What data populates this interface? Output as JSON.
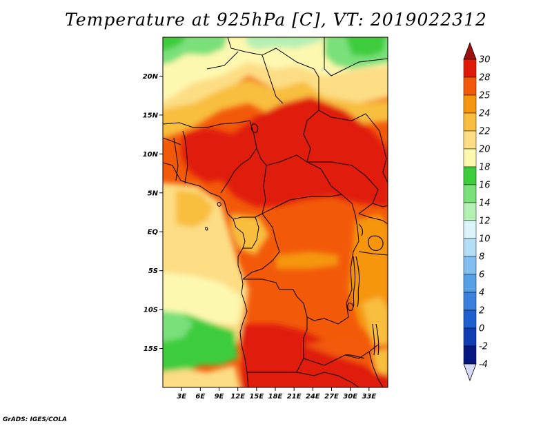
{
  "title": "Temperature at 925hPa [C], VT: 2019022312",
  "credit": "GrADS: IGES/COLA",
  "map": {
    "lon_range": [
      0,
      36
    ],
    "lat_range": [
      -20,
      25
    ],
    "lat_ticks": [
      {
        "value": 20,
        "label": "20N"
      },
      {
        "value": 15,
        "label": "15N"
      },
      {
        "value": 10,
        "label": "10N"
      },
      {
        "value": 5,
        "label": "5N"
      },
      {
        "value": 0,
        "label": "EQ"
      },
      {
        "value": -5,
        "label": "5S"
      },
      {
        "value": -10,
        "label": "10S"
      },
      {
        "value": -15,
        "label": "15S"
      }
    ],
    "lon_ticks": [
      {
        "value": 3,
        "label": "3E"
      },
      {
        "value": 6,
        "label": "6E"
      },
      {
        "value": 9,
        "label": "9E"
      },
      {
        "value": 12,
        "label": "12E"
      },
      {
        "value": 15,
        "label": "15E"
      },
      {
        "value": 18,
        "label": "18E"
      },
      {
        "value": 21,
        "label": "21E"
      },
      {
        "value": 24,
        "label": "24E"
      },
      {
        "value": 27,
        "label": "27E"
      },
      {
        "value": 30,
        "label": "30E"
      },
      {
        "value": 33,
        "label": "33E"
      }
    ]
  },
  "colorbar": {
    "levels": [
      {
        "label": "30",
        "color": "#a01010"
      },
      {
        "label": "28",
        "color": "#e01a0a"
      },
      {
        "label": "25",
        "color": "#f25a0a"
      },
      {
        "label": "24",
        "color": "#f5960e"
      },
      {
        "label": "22",
        "color": "#f8be3e"
      },
      {
        "label": "20",
        "color": "#fcdd84"
      },
      {
        "label": "18",
        "color": "#fdf8b0"
      },
      {
        "label": "16",
        "color": "#3ccc3c"
      },
      {
        "label": "14",
        "color": "#7ae07a"
      },
      {
        "label": "12",
        "color": "#b4f0b4"
      },
      {
        "label": "10",
        "color": "#daf4fa"
      },
      {
        "label": "8",
        "color": "#b4ddf6"
      },
      {
        "label": "6",
        "color": "#82bff0"
      },
      {
        "label": "4",
        "color": "#56a0e6"
      },
      {
        "label": "2",
        "color": "#3a80dc"
      },
      {
        "label": "0",
        "color": "#205fd0"
      },
      {
        "label": "-2",
        "color": "#103cb4"
      },
      {
        "label": "-4",
        "color": "#061880"
      }
    ],
    "top_color": "#a01010",
    "bottom_color": "#d8d8f8"
  },
  "colors": {
    "hot": "#e01a0a",
    "orange": "#f25a0a",
    "warm": "#f5960e",
    "light-orange": "#f8be3e",
    "pale": "#fcdd84",
    "cream": "#fdf8b0",
    "green": "#3ccc3c",
    "light-green": "#7ae07a",
    "pale-green": "#b4f0b4"
  }
}
